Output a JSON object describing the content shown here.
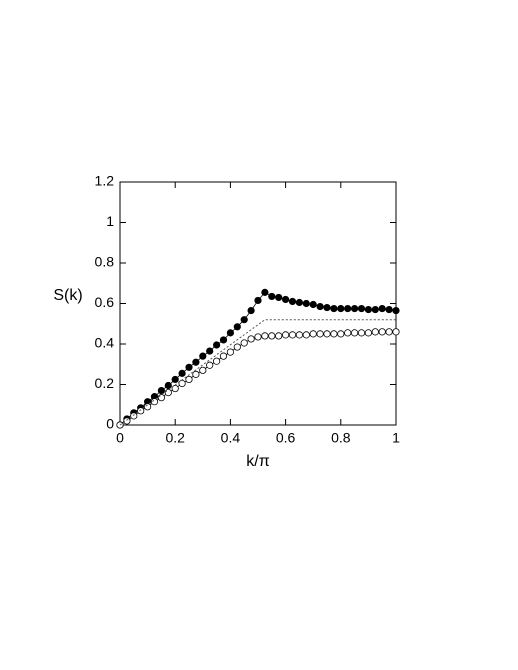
{
  "chart_data": {
    "type": "line",
    "x_label": "k/π",
    "y_label": "S(k)",
    "x": [
      0,
      0.025,
      0.05,
      0.075,
      0.1,
      0.125,
      0.15,
      0.175,
      0.2,
      0.225,
      0.25,
      0.275,
      0.3,
      0.325,
      0.35,
      0.375,
      0.4,
      0.425,
      0.45,
      0.475,
      0.5,
      0.525,
      0.55,
      0.575,
      0.6,
      0.625,
      0.65,
      0.675,
      0.7,
      0.725,
      0.75,
      0.775,
      0.8,
      0.825,
      0.85,
      0.875,
      0.9,
      0.925,
      0.95,
      0.975,
      1
    ],
    "series": [
      {
        "marker": "filled",
        "color": "#000000",
        "values": [
          0,
          0.03,
          0.06,
          0.085,
          0.115,
          0.14,
          0.17,
          0.195,
          0.225,
          0.255,
          0.285,
          0.31,
          0.34,
          0.365,
          0.395,
          0.42,
          0.455,
          0.485,
          0.52,
          0.565,
          0.615,
          0.655,
          0.635,
          0.63,
          0.62,
          0.61,
          0.605,
          0.6,
          0.595,
          0.585,
          0.58,
          0.575,
          0.575,
          0.575,
          0.575,
          0.575,
          0.57,
          0.57,
          0.575,
          0.57,
          0.565
        ],
        "errors": [
          0.005,
          0.005,
          0.005,
          0.006,
          0.006,
          0.007,
          0.007,
          0.008,
          0.008,
          0.008,
          0.009,
          0.009,
          0.01,
          0.01,
          0.01,
          0.011,
          0.012,
          0.012,
          0.013,
          0.014,
          0.015,
          0.016,
          0.015,
          0.014,
          0.013,
          0.013,
          0.012,
          0.012,
          0.012,
          0.012,
          0.012,
          0.012,
          0.012,
          0.012,
          0.012,
          0.012,
          0.012,
          0.012,
          0.012,
          0.012,
          0.012
        ]
      },
      {
        "marker": "open",
        "color": "#000000",
        "values": [
          0,
          0.02,
          0.045,
          0.07,
          0.09,
          0.115,
          0.135,
          0.16,
          0.18,
          0.205,
          0.225,
          0.25,
          0.27,
          0.295,
          0.315,
          0.34,
          0.36,
          0.385,
          0.405,
          0.425,
          0.435,
          0.44,
          0.44,
          0.44,
          0.445,
          0.445,
          0.445,
          0.445,
          0.45,
          0.45,
          0.45,
          0.45,
          0.45,
          0.455,
          0.455,
          0.455,
          0.455,
          0.46,
          0.46,
          0.46,
          0.46
        ]
      },
      {
        "marker": "none",
        "dash": true,
        "color": "#555555",
        "x": [
          0,
          0.525,
          1
        ],
        "values": [
          0,
          0.52,
          0.52
        ]
      }
    ],
    "xlim": [
      0,
      1
    ],
    "ylim": [
      0,
      1.2
    ],
    "xticks": [
      0,
      0.2,
      0.4,
      0.6,
      0.8,
      1
    ],
    "yticks": [
      0,
      0.2,
      0.4,
      0.6,
      0.8,
      1,
      1.2
    ]
  }
}
